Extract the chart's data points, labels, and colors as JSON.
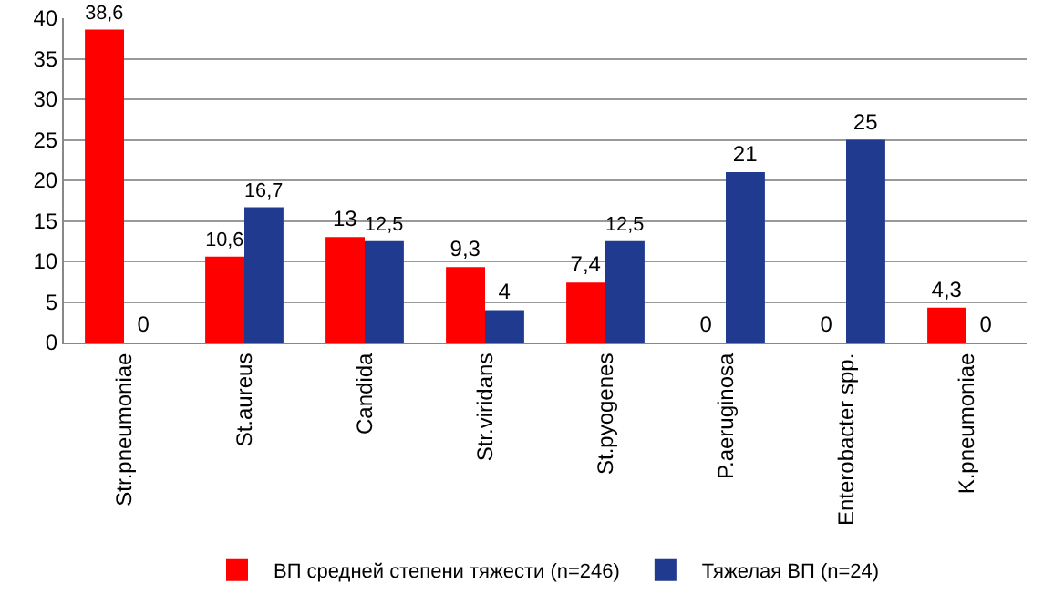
{
  "chart_data": {
    "type": "bar",
    "categories": [
      "Str.pneumoniae",
      "St.aureus",
      "Candida",
      "Str.viridans",
      "St.pyogenes",
      "P.aeruginosa",
      "Enterobacter spp.",
      "K.pneumoniae"
    ],
    "series": [
      {
        "name": "ВП средней степени тяжести (n=246)",
        "color": "#ff0000",
        "values": [
          38.6,
          10.6,
          13,
          9.3,
          7.4,
          0,
          0,
          4.3
        ],
        "value_labels": [
          "38,6",
          "10,6",
          "13",
          "9,3",
          "7,4",
          "0",
          "0",
          "4,3"
        ]
      },
      {
        "name": "Тяжелая ВП (n=24)",
        "color": "#1f3a8f",
        "values": [
          0,
          16.7,
          12.5,
          4,
          12.5,
          21,
          25,
          0
        ],
        "value_labels": [
          "0",
          "16,7",
          "12,5",
          "4",
          "12,5",
          "21",
          "25",
          "0"
        ]
      }
    ],
    "ylim": [
      0,
      40
    ],
    "yticks": [
      0,
      5,
      10,
      15,
      20,
      25,
      30,
      35,
      40
    ],
    "grid": "y",
    "legend": "bottom"
  }
}
